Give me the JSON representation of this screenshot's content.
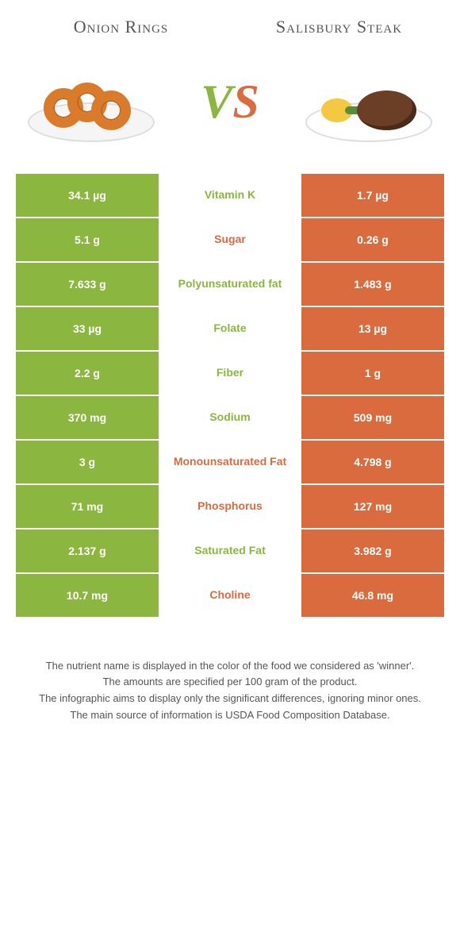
{
  "foods": {
    "left": {
      "title": "Onion Rings",
      "color": "#8bb63f"
    },
    "right": {
      "title": "Salisbury Steak",
      "color": "#d96b3f"
    }
  },
  "vs": {
    "v": "V",
    "s": "S"
  },
  "colors": {
    "green": "#8bb63f",
    "orange": "#d96b3f",
    "bg": "#ffffff"
  },
  "rows": [
    {
      "nutrient": "Vitamin K",
      "left": "34.1 µg",
      "right": "1.7 µg",
      "winner": "left"
    },
    {
      "nutrient": "Sugar",
      "left": "5.1 g",
      "right": "0.26 g",
      "winner": "right"
    },
    {
      "nutrient": "Polyunsaturated fat",
      "left": "7.633 g",
      "right": "1.483 g",
      "winner": "left"
    },
    {
      "nutrient": "Folate",
      "left": "33 µg",
      "right": "13 µg",
      "winner": "left"
    },
    {
      "nutrient": "Fiber",
      "left": "2.2 g",
      "right": "1 g",
      "winner": "left"
    },
    {
      "nutrient": "Sodium",
      "left": "370 mg",
      "right": "509 mg",
      "winner": "left"
    },
    {
      "nutrient": "Monounsaturated Fat",
      "left": "3 g",
      "right": "4.798 g",
      "winner": "right"
    },
    {
      "nutrient": "Phosphorus",
      "left": "71 mg",
      "right": "127 mg",
      "winner": "right"
    },
    {
      "nutrient": "Saturated Fat",
      "left": "2.137 g",
      "right": "3.982 g",
      "winner": "left"
    },
    {
      "nutrient": "Choline",
      "left": "10.7 mg",
      "right": "46.8 mg",
      "winner": "right"
    }
  ],
  "footnotes": [
    "The nutrient name is displayed in the color of the food we considered as 'winner'.",
    "The amounts are specified per 100 gram of the product.",
    "The infographic aims to display only the significant differences, ignoring minor ones.",
    "The main source of information is USDA Food Composition Database."
  ]
}
